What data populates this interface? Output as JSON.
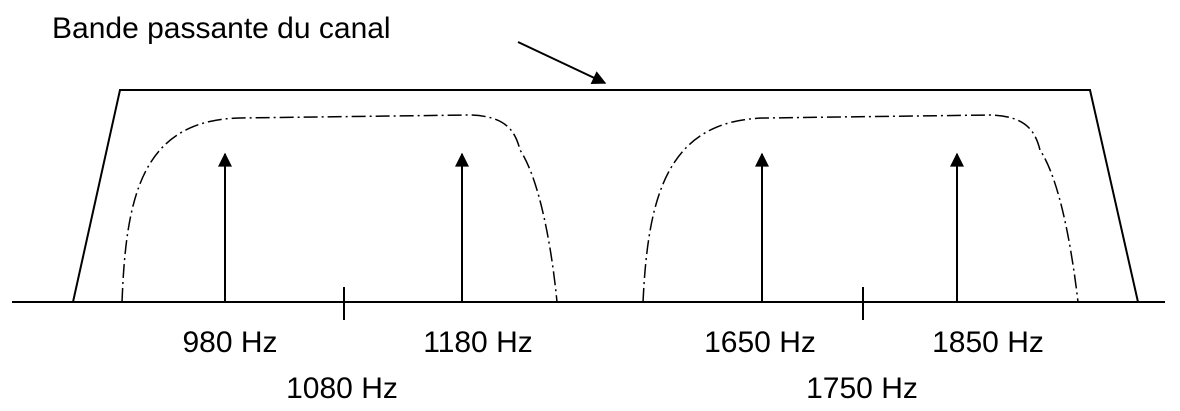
{
  "title": "Bande passante du canal",
  "carriers": [
    "980 Hz",
    "1180 Hz",
    "1650 Hz",
    "1850 Hz"
  ],
  "centers": [
    "1080 Hz",
    "1750 Hz"
  ]
}
